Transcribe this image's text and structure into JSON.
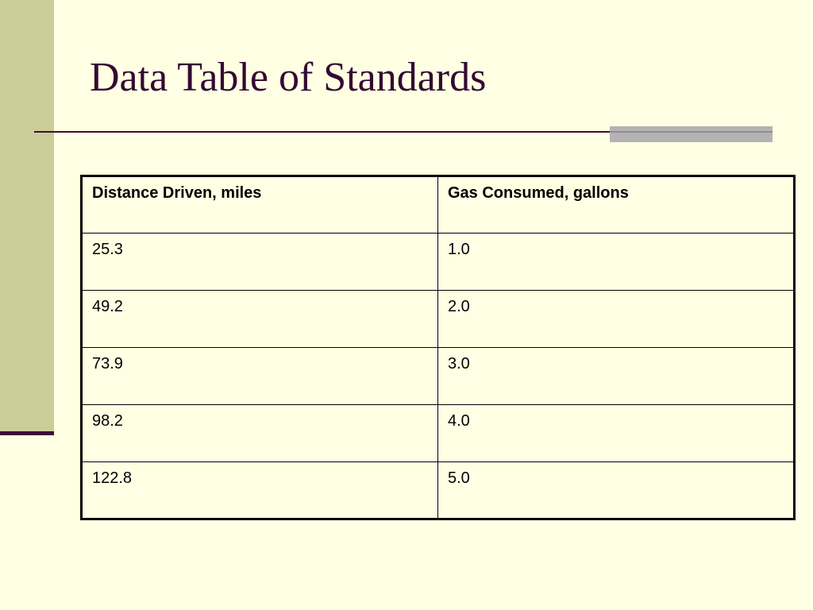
{
  "slide": {
    "title": "Data Table of Standards"
  },
  "table": {
    "headers": [
      "Distance Driven, miles",
      "Gas Consumed, gallons"
    ],
    "rows": [
      [
        "25.3",
        "1.0"
      ],
      [
        "49.2",
        "2.0"
      ],
      [
        "73.9",
        "3.0"
      ],
      [
        "98.2",
        "4.0"
      ],
      [
        "122.8",
        "5.0"
      ]
    ]
  },
  "colors": {
    "background": "#ffffe3",
    "side_bar": "#cccc99",
    "title_text": "#330a33",
    "rule": "#3d0d36",
    "rule_accent": "#b3b3b3"
  }
}
